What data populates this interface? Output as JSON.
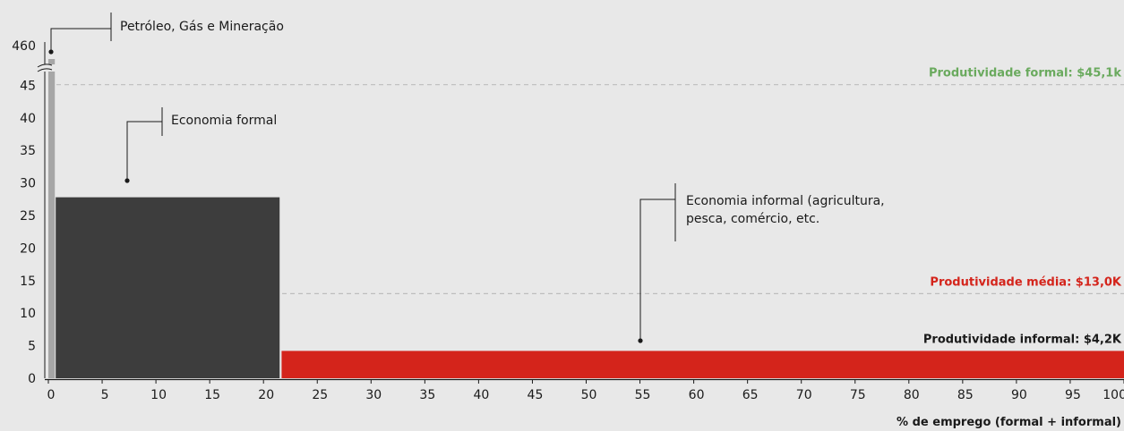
{
  "chart_data": {
    "type": "bar",
    "xlabel": "% de emprego (formal + informal)",
    "ylabel": "",
    "xlim": [
      0,
      100
    ],
    "x_ticks": [
      0,
      5,
      10,
      15,
      20,
      25,
      30,
      35,
      40,
      45,
      50,
      55,
      60,
      65,
      70,
      75,
      80,
      85,
      90,
      95,
      100
    ],
    "ylim": [
      0,
      46
    ],
    "y_ticks": [
      0,
      5,
      10,
      15,
      20,
      25,
      30,
      35,
      40,
      45
    ],
    "y_break": {
      "top_label": "460"
    },
    "segments": [
      {
        "name": "Petróleo, Gás e Mineração",
        "x_start": 0,
        "x_end": 0.6,
        "value": 460,
        "color": "#a6a6a6"
      },
      {
        "name": "Economia formal",
        "x_start": 0.6,
        "x_end": 21.5,
        "value": 27.8,
        "color": "#3d3d3d"
      },
      {
        "name": "Economia informal (agricultura, pesca, comércio, etc.)",
        "lines": [
          "Economia informal (agricultura,",
          "pesca, comércio, etc."
        ],
        "x_start": 21.6,
        "x_end": 100,
        "value": 4.2,
        "color": "#d4241b"
      }
    ],
    "reference_lines": [
      {
        "label": "Produtividade formal: $45,1k",
        "value": 45.1,
        "color": "#6aaa5e",
        "dashed": true
      },
      {
        "label": "Produtividade média: $13,0K",
        "value": 13.0,
        "color": "#d4241b",
        "dashed": true
      },
      {
        "label": "Produtividade informal: $4,2K",
        "value": 4.2,
        "color": "#1a1a1a",
        "dashed": false
      }
    ],
    "grid": false,
    "legend": "none"
  }
}
